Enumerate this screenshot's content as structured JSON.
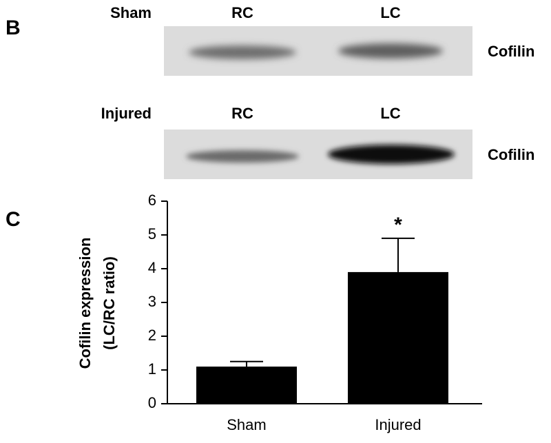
{
  "panel_b": {
    "label": "B",
    "blots": [
      {
        "group": "Sham",
        "lanes": [
          "RC",
          "LC"
        ],
        "protein": "Cofilin"
      },
      {
        "group": "Injured",
        "lanes": [
          "RC",
          "LC"
        ],
        "protein": "Cofilin"
      }
    ]
  },
  "chart_data": {
    "type": "bar",
    "panel_label": "C",
    "ylabel": [
      "Cofilin expression",
      "(LC/RC ratio)"
    ],
    "categories": [
      "Sham",
      "Injured"
    ],
    "values": [
      1.1,
      3.9
    ],
    "errors": [
      0.15,
      1.0
    ],
    "color": "#000000",
    "ylim": [
      0,
      6
    ],
    "yticks": [
      0,
      1,
      2,
      3,
      4,
      5,
      6
    ],
    "annotation": "*"
  }
}
